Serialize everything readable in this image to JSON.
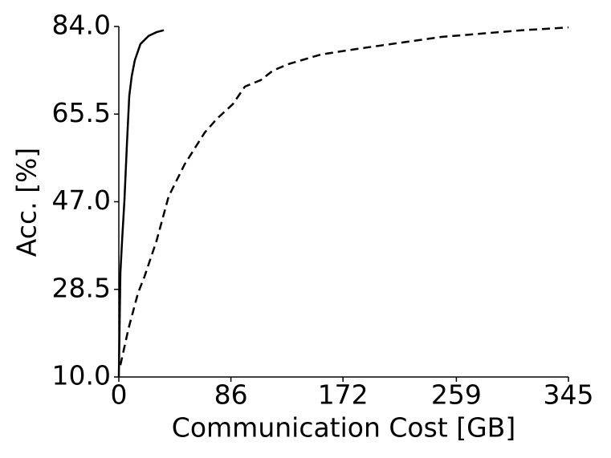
{
  "chart_data": {
    "type": "line",
    "xlabel": "Communication Cost [GB]",
    "ylabel": "Acc. [%]",
    "xlim": [
      0,
      345
    ],
    "xticks": [
      0,
      86,
      172,
      259,
      345
    ],
    "ylim": [
      10,
      84
    ],
    "yticks": [
      {
        "value": 10,
        "label": "10.0"
      },
      28.5,
      {
        "value": 47,
        "label": "47.0"
      },
      65.5,
      {
        "value": 84,
        "label": "84.0"
      }
    ],
    "grid": false,
    "series": [
      {
        "color": "#000000",
        "linestyle": "solid",
        "x": [
          0,
          1.2,
          2.5,
          4.3,
          6.2,
          8,
          9.9,
          12.3,
          16.6,
          22.8,
          28.9,
          34.5
        ],
        "values": [
          10,
          32.0,
          38.8,
          47.3,
          59.1,
          69.3,
          73.5,
          76.9,
          80.3,
          82.0,
          82.8,
          83.2
        ]
      },
      {
        "color": "#000000",
        "linestyle": "dashed",
        "x": [
          1.2,
          7.4,
          14.8,
          19.7,
          29.0,
          38.2,
          50.5,
          65.9,
          75.2,
          87.5,
          96.7,
          109.0,
          118.3,
          130.6,
          155.3,
          186.1,
          216.9,
          247.7,
          278.5,
          309.3,
          345
        ],
        "values": [
          12.5,
          20.2,
          27.8,
          31.2,
          38.8,
          48.1,
          54.9,
          61.6,
          64.5,
          67.6,
          71.3,
          72.7,
          74.7,
          76.1,
          78.1,
          79.4,
          80.6,
          81.8,
          82.5,
          83.2,
          83.8
        ]
      }
    ]
  }
}
